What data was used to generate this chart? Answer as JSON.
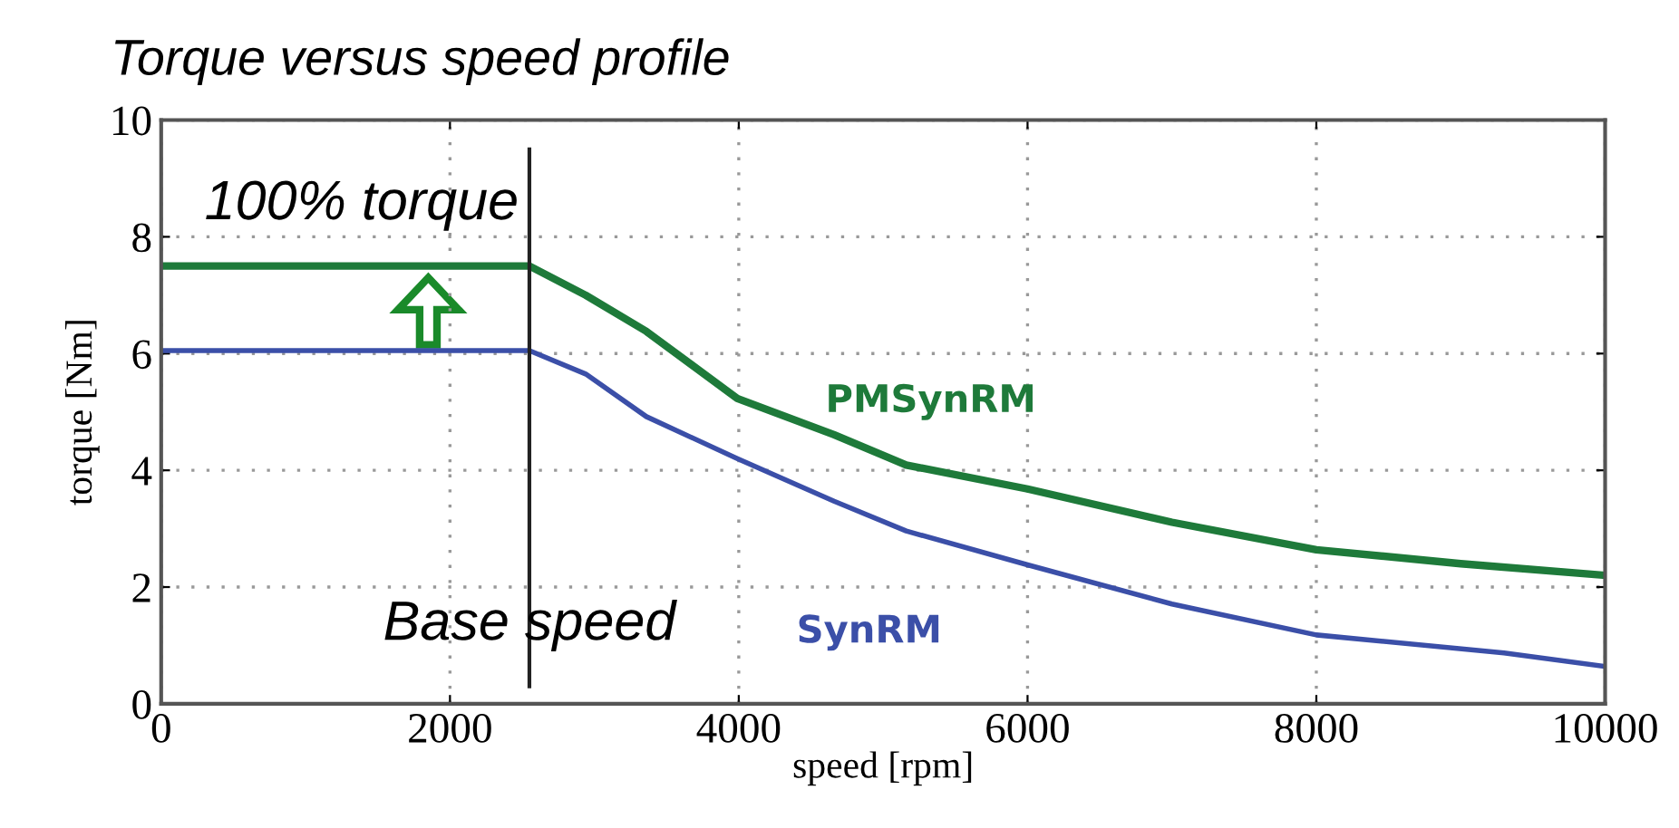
{
  "chart_data": {
    "type": "line",
    "title": "Torque versus speed profile",
    "xlabel": "speed [rpm]",
    "ylabel": "torque [Nm]",
    "xlim": [
      0,
      10000
    ],
    "xticks": [
      0,
      2000,
      4000,
      6000,
      8000,
      10000
    ],
    "ylim": [
      0,
      10
    ],
    "yticks": [
      0,
      2,
      4,
      6,
      8,
      10
    ],
    "grid": true,
    "legend": false,
    "marker": "none",
    "line_style": "solid",
    "series": [
      {
        "name": "PMSynRM",
        "color": "#1e7a3a",
        "x": [
          0,
          2550,
          2940,
          3360,
          3990,
          4660,
          5160,
          6000,
          7000,
          8000,
          9000,
          10000
        ],
        "values": [
          7.5,
          7.5,
          7.0,
          6.38,
          5.23,
          4.61,
          4.09,
          3.68,
          3.11,
          2.64,
          2.4,
          2.2
        ]
      },
      {
        "name": "SynRM",
        "color": "#3b4fa8",
        "x": [
          0,
          2550,
          2940,
          3360,
          3990,
          4660,
          5160,
          6000,
          7000,
          8000,
          9300,
          10000
        ],
        "values": [
          6.05,
          6.05,
          5.65,
          4.92,
          4.2,
          3.47,
          2.96,
          2.38,
          1.71,
          1.18,
          0.87,
          0.64
        ]
      }
    ],
    "ref_lines": [
      {
        "axis": "x",
        "value": 2550,
        "label": "Base speed",
        "color": "#222222"
      }
    ],
    "annotations": [
      "100% torque"
    ]
  }
}
